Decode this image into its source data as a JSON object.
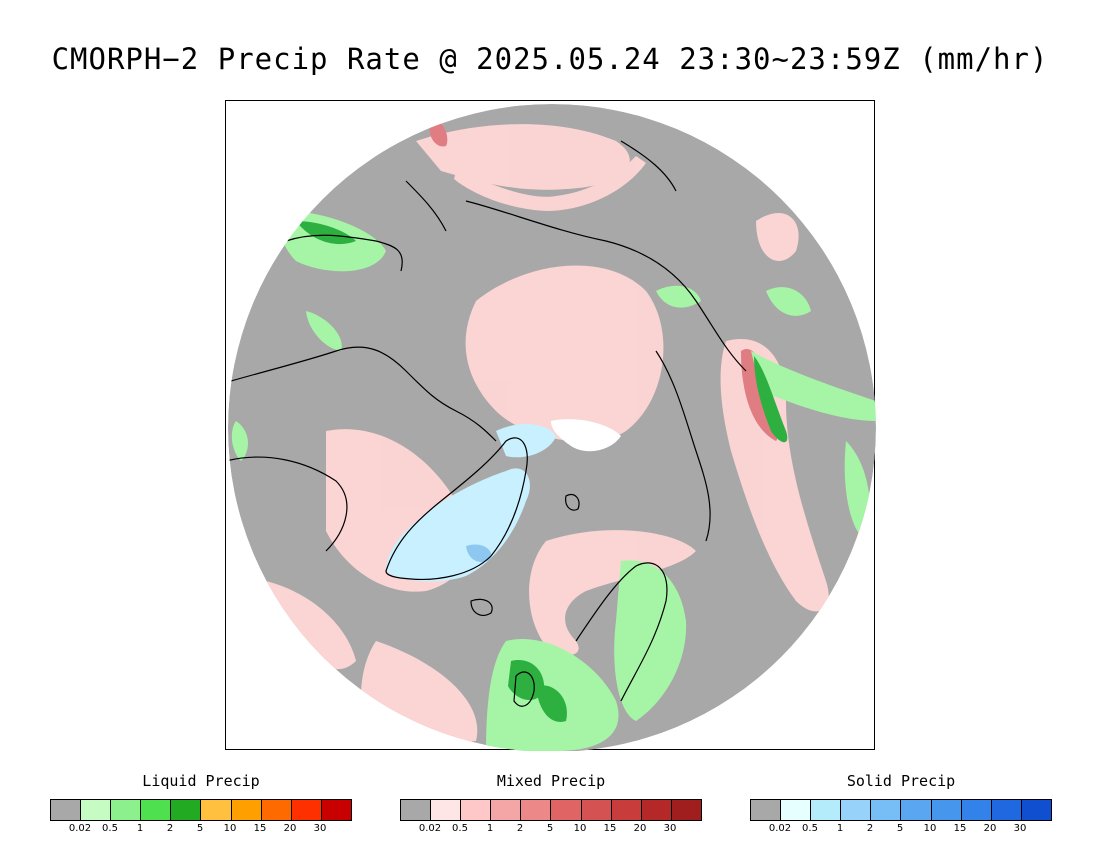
{
  "title": "CMORPH−2 Precip Rate @ 2025.05.24 23:30~23:59Z (mm/hr)",
  "map": {
    "projection": "north-polar-stereographic",
    "background_color": "#a8a8a8",
    "coastline_color": "#000000",
    "regions": [
      {
        "name": "snow-greenland",
        "type": "solid",
        "color": "#c8f0ff"
      },
      {
        "name": "snow-greenland-heavy",
        "type": "solid",
        "color": "#8ec8f0"
      },
      {
        "name": "snow-pole",
        "type": "solid",
        "color": "#ffffff"
      },
      {
        "name": "mixed-arctic-band",
        "type": "mixed",
        "color": "#ffd6d6"
      },
      {
        "name": "mixed-bering",
        "type": "mixed",
        "color": "#ffd6d6"
      },
      {
        "name": "mixed-heavy-siberia",
        "type": "mixed",
        "color": "#e07d82"
      },
      {
        "name": "mixed-heavy-alaska",
        "type": "mixed",
        "color": "#e88f94"
      },
      {
        "name": "liquid-europe",
        "type": "liquid",
        "color": "#a6f5a6"
      },
      {
        "name": "liquid-heavy-uk",
        "type": "liquid",
        "color": "#2db040"
      },
      {
        "name": "liquid-scandinavia",
        "type": "liquid",
        "color": "#a6f5a6"
      },
      {
        "name": "liquid-siberia",
        "type": "liquid",
        "color": "#7fe87f"
      },
      {
        "name": "liquid-canada",
        "type": "liquid",
        "color": "#a6f5a6"
      },
      {
        "name": "liquid-alaska",
        "type": "liquid",
        "color": "#7fe87f"
      }
    ]
  },
  "legends": [
    {
      "title": "Liquid Precip",
      "colors": [
        "#a8a8a8",
        "#c6fcc4",
        "#8cf08c",
        "#4ee04e",
        "#22aa22",
        "#ffc040",
        "#ffa000",
        "#ff6a00",
        "#ff3000",
        "#c80000"
      ],
      "ticks": [
        "0.02",
        "0.5",
        "1",
        "2",
        "5",
        "10",
        "15",
        "20",
        "30"
      ]
    },
    {
      "title": "Mixed Precip",
      "colors": [
        "#a8a8a8",
        "#ffe6e6",
        "#ffc8c8",
        "#f4a6a6",
        "#ec8888",
        "#e06464",
        "#d45252",
        "#c83c3c",
        "#b42828",
        "#a01e1e"
      ],
      "ticks": [
        "0.02",
        "0.5",
        "1",
        "2",
        "5",
        "10",
        "15",
        "20",
        "30"
      ]
    },
    {
      "title": "Solid Precip",
      "colors": [
        "#a8a8a8",
        "#e6ffff",
        "#b4ecfc",
        "#96d2fa",
        "#78bef6",
        "#5aa6f0",
        "#4696ee",
        "#3282ea",
        "#2068e0",
        "#1050d0"
      ],
      "ticks": [
        "0.02",
        "0.5",
        "1",
        "2",
        "5",
        "10",
        "15",
        "20",
        "30"
      ]
    }
  ]
}
